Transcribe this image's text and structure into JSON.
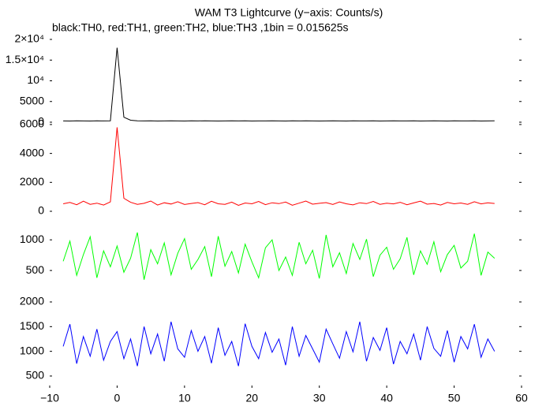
{
  "chart_data": [
    {
      "type": "line",
      "title": "WAM T3 Lightcurve (y−axis: Counts/s)",
      "subtitle": "black:TH0, red:TH1, green:TH2, blue:TH3 ,1bin = 0.015625s",
      "color": "#000000",
      "xlim": [
        -10,
        60
      ],
      "ylim": [
        0,
        21900
      ],
      "yticks": [
        0,
        5000,
        {
          "value": 10000,
          "label": "10⁴"
        },
        {
          "value": 15000,
          "label": "1.5×10⁴"
        },
        {
          "value": 20000,
          "label": "2×10⁴"
        }
      ],
      "x": [
        -8,
        -7,
        -6,
        -5,
        -4,
        -3,
        -2,
        -1,
        0,
        1,
        2,
        3,
        4,
        5,
        6,
        7,
        8,
        9,
        10,
        11,
        12,
        13,
        14,
        15,
        16,
        17,
        18,
        19,
        20,
        21,
        22,
        23,
        24,
        25,
        26,
        27,
        28,
        29,
        30,
        31,
        32,
        33,
        34,
        35,
        36,
        37,
        38,
        39,
        40,
        41,
        42,
        43,
        44,
        45,
        46,
        47,
        48,
        49,
        50,
        51,
        52,
        53,
        54,
        55,
        56
      ],
      "values": [
        310,
        290,
        340,
        300,
        280,
        330,
        300,
        350,
        18000,
        1200,
        480,
        340,
        300,
        320,
        290,
        310,
        330,
        300,
        280,
        320,
        310,
        340,
        300,
        290,
        310,
        330,
        300,
        320,
        290,
        310,
        300,
        340,
        310,
        290,
        320,
        300,
        330,
        310,
        280,
        300,
        320,
        310,
        290,
        330,
        300,
        310,
        320,
        290,
        300,
        340,
        310,
        300,
        320,
        290,
        310,
        330,
        300,
        280,
        320,
        310,
        300,
        330,
        290,
        310,
        320
      ]
    },
    {
      "type": "line",
      "color": "#ff0000",
      "xlim": [
        -10,
        60
      ],
      "ylim": [
        0,
        6160
      ],
      "yticks": [
        0,
        2000,
        4000,
        6000
      ],
      "x": [
        -8,
        -7,
        -6,
        -5,
        -4,
        -3,
        -2,
        -1,
        0,
        1,
        2,
        3,
        4,
        5,
        6,
        7,
        8,
        9,
        10,
        11,
        12,
        13,
        14,
        15,
        16,
        17,
        18,
        19,
        20,
        21,
        22,
        23,
        24,
        25,
        26,
        27,
        28,
        29,
        30,
        31,
        32,
        33,
        34,
        35,
        36,
        37,
        38,
        39,
        40,
        41,
        42,
        43,
        44,
        45,
        46,
        47,
        48,
        49,
        50,
        51,
        52,
        53,
        54,
        55,
        56
      ],
      "values": [
        520,
        610,
        450,
        700,
        480,
        560,
        430,
        650,
        5800,
        900,
        620,
        480,
        550,
        710,
        430,
        590,
        500,
        660,
        470,
        540,
        600,
        450,
        690,
        520,
        480,
        630,
        410,
        570,
        520,
        680,
        460,
        590,
        530,
        640,
        420,
        560,
        710,
        490,
        550,
        600,
        470,
        650,
        520,
        440,
        590,
        530,
        680,
        480,
        560,
        510,
        620,
        450,
        580,
        700,
        490,
        540,
        430,
        610,
        520,
        570,
        480,
        660,
        510,
        590,
        540
      ]
    },
    {
      "type": "line",
      "color": "#00ff00",
      "xlim": [
        -10,
        60
      ],
      "ylim": [
        0,
        1440
      ],
      "yticks": [
        500,
        1000
      ],
      "x": [
        -8,
        -7,
        -6,
        -5,
        -4,
        -3,
        -2,
        -1,
        0,
        1,
        2,
        3,
        4,
        5,
        6,
        7,
        8,
        9,
        10,
        11,
        12,
        13,
        14,
        15,
        16,
        17,
        18,
        19,
        20,
        21,
        22,
        23,
        24,
        25,
        26,
        27,
        28,
        29,
        30,
        31,
        32,
        33,
        34,
        35,
        36,
        37,
        38,
        39,
        40,
        41,
        42,
        43,
        44,
        45,
        46,
        47,
        48,
        49,
        50,
        51,
        52,
        53,
        54,
        55,
        56
      ],
      "values": [
        650,
        980,
        420,
        760,
        1050,
        380,
        820,
        560,
        900,
        470,
        700,
        1120,
        350,
        840,
        610,
        950,
        430,
        780,
        1020,
        520,
        680,
        890,
        400,
        1060,
        570,
        810,
        460,
        930,
        640,
        380,
        870,
        1000,
        500,
        720,
        420,
        960,
        610,
        830,
        370,
        1080,
        560,
        790,
        450,
        940,
        680,
        1010,
        400,
        750,
        880,
        520,
        690,
        1040,
        430,
        820,
        600,
        970,
        480,
        760,
        910,
        540,
        650,
        1100,
        420,
        800,
        700
      ]
    },
    {
      "type": "line",
      "color": "#0000ff",
      "xlim": [
        -10,
        60
      ],
      "ylim": [
        260,
        2000
      ],
      "yticks": [
        500,
        1000,
        1500,
        2000
      ],
      "xticks": [
        {
          "value": -10,
          "label": "−10"
        },
        0,
        10,
        20,
        30,
        40,
        50,
        60
      ],
      "x": [
        -8,
        -7,
        -6,
        -5,
        -4,
        -3,
        -2,
        -1,
        0,
        1,
        2,
        3,
        4,
        5,
        6,
        7,
        8,
        9,
        10,
        11,
        12,
        13,
        14,
        15,
        16,
        17,
        18,
        19,
        20,
        21,
        22,
        23,
        24,
        25,
        26,
        27,
        28,
        29,
        30,
        31,
        32,
        33,
        34,
        35,
        36,
        37,
        38,
        39,
        40,
        41,
        42,
        43,
        44,
        45,
        46,
        47,
        48,
        49,
        50,
        51,
        52,
        53,
        54,
        55,
        56
      ],
      "values": [
        1100,
        1550,
        750,
        1300,
        900,
        1450,
        820,
        1200,
        1400,
        850,
        1250,
        700,
        1500,
        950,
        1350,
        800,
        1600,
        1050,
        880,
        1420,
        1000,
        1300,
        760,
        1480,
        920,
        1200,
        700,
        1560,
        1100,
        850,
        1380,
        980,
        1250,
        720,
        1500,
        900,
        1320,
        1050,
        780,
        1450,
        1150,
        860,
        1400,
        990,
        1600,
        800,
        1280,
        1020,
        1480,
        740,
        1200,
        950,
        1350,
        820,
        1500,
        1060,
        900,
        1420,
        780,
        1300,
        1050,
        1550,
        880,
        1250,
        1000
      ]
    }
  ]
}
